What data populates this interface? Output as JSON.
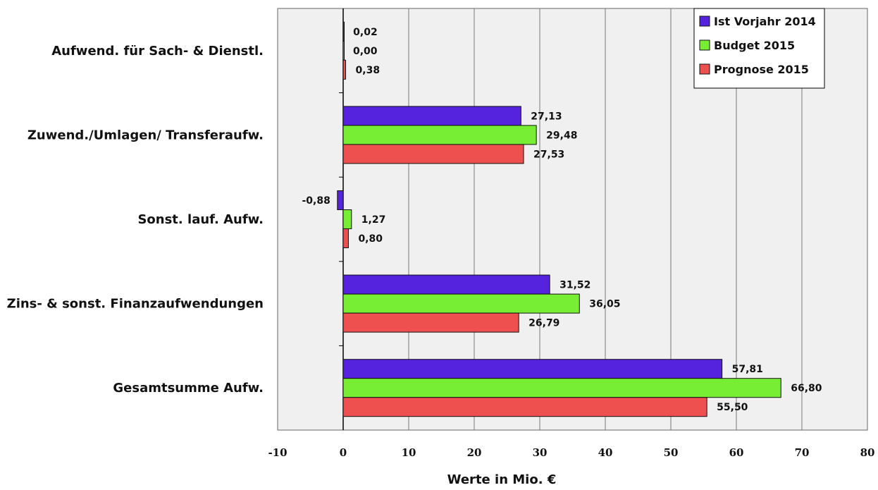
{
  "chart_data": {
    "type": "bar",
    "orientation": "horizontal",
    "categories": [
      "Aufwend. für Sach- & Dienstl.",
      "Zuwend./Umlagen/ Transferaufw.",
      "Sonst. lauf. Aufw.",
      "Zins- & sonst. Finanzaufwendungen",
      "Gesamtsumme Aufw."
    ],
    "series": [
      {
        "name": "Ist Vorjahr 2014",
        "color": "#5522DD",
        "values": [
          0.02,
          27.13,
          -0.88,
          31.52,
          57.81
        ],
        "labels": [
          "0,02",
          "27,13",
          "-0,88",
          "31,52",
          "57,81"
        ]
      },
      {
        "name": "Budget 2015",
        "color": "#77EE33",
        "values": [
          0.0,
          29.48,
          1.27,
          36.05,
          66.8
        ],
        "labels": [
          "0,00",
          "29,48",
          "1,27",
          "36,05",
          "66,80"
        ]
      },
      {
        "name": "Prognose 2015",
        "color": "#EE4F4F",
        "values": [
          0.38,
          27.53,
          0.8,
          26.79,
          55.5
        ],
        "labels": [
          "0,38",
          "27,53",
          "0,80",
          "26,79",
          "55,50"
        ]
      }
    ],
    "xlabel": "Werte in  Mio. €",
    "ylabel": "",
    "xlim": [
      -10,
      80
    ],
    "xticks": [
      -10,
      0,
      10,
      20,
      30,
      40,
      50,
      60,
      70,
      80
    ],
    "grid": "vertical",
    "legend_position": "top-right",
    "plot_background": "#F0F0F0"
  }
}
